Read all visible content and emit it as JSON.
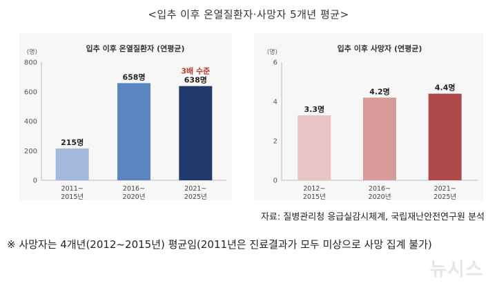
{
  "title": "<입추 이후 온열질환자·사망자 5개년 평균>",
  "source": "자료: 질병관리청 응급실감시체계, 국립재난안전연구원 분석",
  "footnote": "※ 사망자는 4개년(2012~2015년) 평균임(2011년은 진료결과가 모두 미상으로 사망 집계 불가)",
  "watermark": "뉴시스",
  "chart_data": [
    {
      "type": "bar",
      "title": "입추 이후 온열질환자 (연평균)",
      "unit_label": "(명)",
      "categories": [
        [
          "2011~",
          "2015년"
        ],
        [
          "2016~",
          "2020년"
        ],
        [
          "2021~",
          "2025년"
        ]
      ],
      "values": [
        215,
        658,
        638
      ],
      "value_labels": [
        "215명",
        "658명",
        "638명"
      ],
      "annotation": "3배 수준",
      "annotation_color": "#c0392b",
      "ylim": [
        0,
        800
      ],
      "yticks": [
        0,
        200,
        400,
        600,
        800
      ],
      "colors": [
        "#a3b8dc",
        "#5a86c0",
        "#1f3a6b"
      ],
      "grid": false,
      "legend": "none"
    },
    {
      "type": "bar",
      "title": "입추 이후 사망자 (연평균)",
      "unit_label": "(명)",
      "categories": [
        [
          "2012~",
          "2015년"
        ],
        [
          "2016~",
          "2020년"
        ],
        [
          "2021~",
          "2025년"
        ]
      ],
      "values": [
        3.3,
        4.2,
        4.4
      ],
      "value_labels": [
        "3.3명",
        "4.2명",
        "4.4명"
      ],
      "ylim": [
        0,
        6
      ],
      "yticks": [
        0,
        2,
        4,
        6
      ],
      "colors": [
        "#e9c4c4",
        "#d99a9a",
        "#b04a4a"
      ],
      "grid": false,
      "legend": "none"
    }
  ]
}
